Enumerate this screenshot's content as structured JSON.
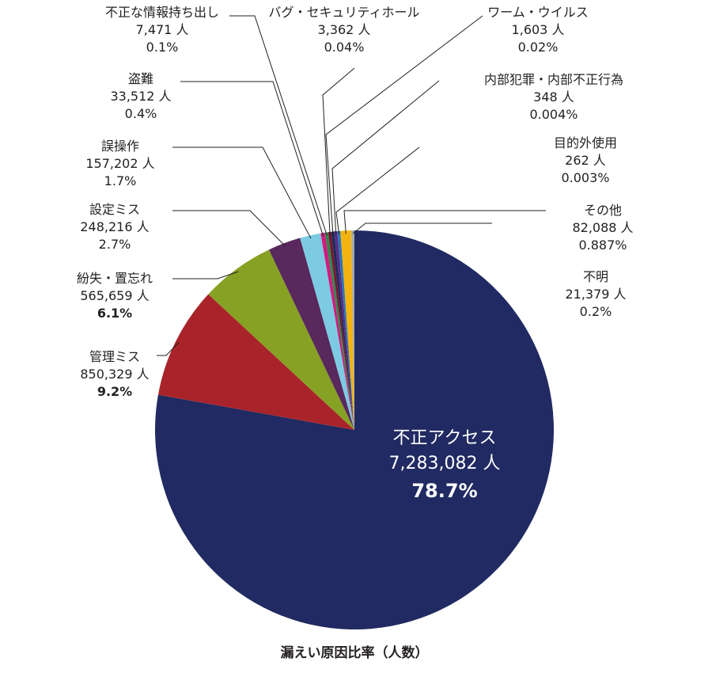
{
  "chart_data": {
    "type": "pie",
    "caption": "漏えい原因比率（人数）",
    "unit": "人",
    "slices": [
      {
        "name": "不正アクセス",
        "count": "7,283,082",
        "percent": "78.7%",
        "value": 7283082,
        "color": "#212a62"
      },
      {
        "name": "管理ミス",
        "count": "850,329",
        "percent": "9.2%",
        "value": 850329,
        "color": "#a8242a"
      },
      {
        "name": "紛失・置忘れ",
        "count": "565,659",
        "percent": "6.1%",
        "value": 565659,
        "color": "#87a124"
      },
      {
        "name": "設定ミス",
        "count": "248,216",
        "percent": "2.7%",
        "value": 248216,
        "color": "#59285c"
      },
      {
        "name": "誤操作",
        "count": "157,202",
        "percent": "1.7%",
        "value": 157202,
        "color": "#7dcbe3"
      },
      {
        "name": "盗難",
        "count": "33,512",
        "percent": "0.4%",
        "value": 33512,
        "color": "#cf1d7f"
      },
      {
        "name": "不正な情報持ち出し",
        "count": "7,471",
        "percent": "0.1%",
        "value": 7471,
        "color": "#2c8a4b"
      },
      {
        "name": "バグ・セキュリティホール",
        "count": "3,362",
        "percent": "0.04%",
        "value": 3362,
        "color": "#7a1630"
      },
      {
        "name": "ワーム・ウイルス",
        "count": "1,603",
        "percent": "0.02%",
        "value": 1603,
        "color": "#1c2b59"
      },
      {
        "name": "内部犯罪・内部不正行為",
        "count": "348",
        "percent": "0.004%",
        "value": 348,
        "color": "#5b2a86"
      },
      {
        "name": "目的外使用",
        "count": "262",
        "percent": "0.003%",
        "value": 262,
        "color": "#2a77b6"
      },
      {
        "name": "その他",
        "count": "82,088",
        "percent": "0.887%",
        "value": 82088,
        "color": "#f4b312"
      },
      {
        "name": "不明",
        "count": "21,379",
        "percent": "0.2%",
        "value": 21379,
        "color": "#a6aaad"
      }
    ]
  }
}
